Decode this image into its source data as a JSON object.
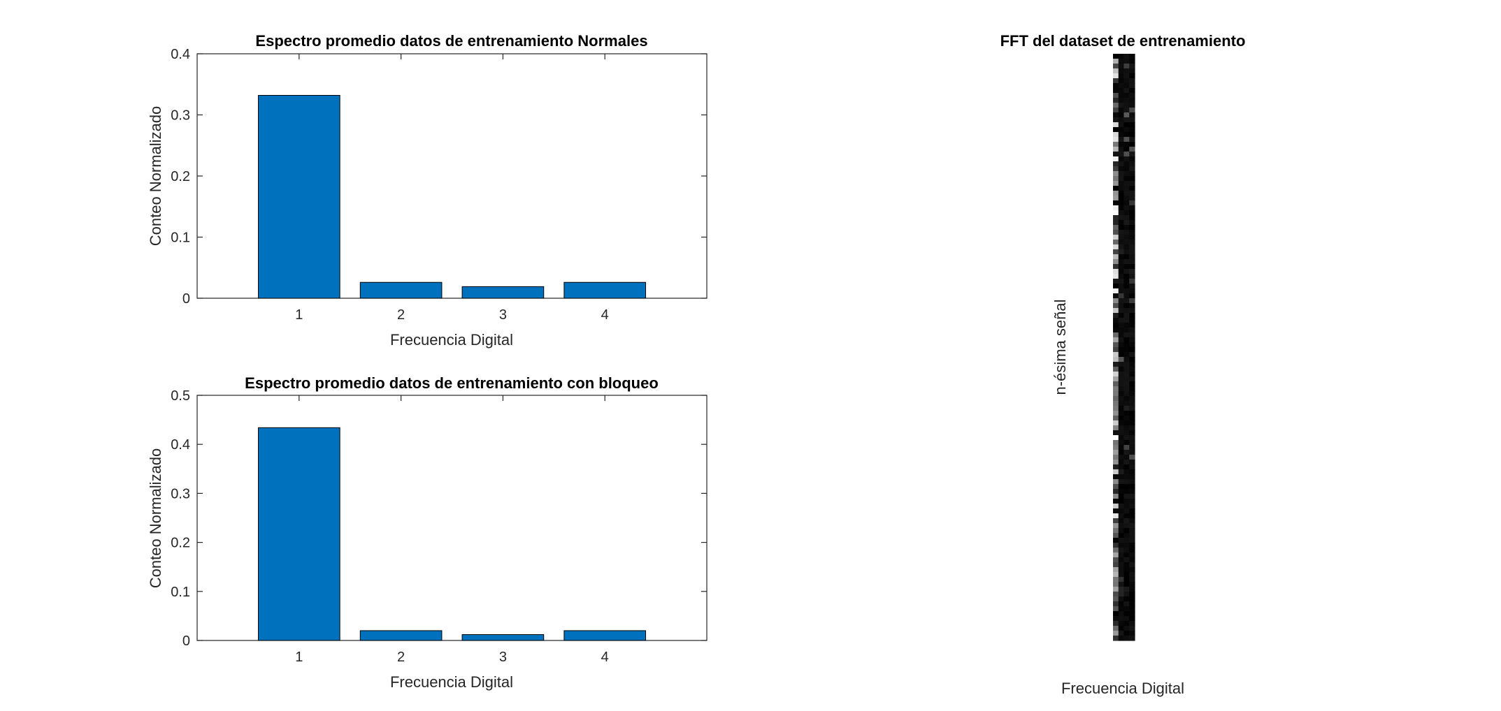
{
  "chart_data": [
    {
      "type": "bar",
      "title": "Espectro promedio datos de entrenamiento Normales",
      "xlabel": "Frecuencia Digital",
      "ylabel": "Conteo Normalizado",
      "categories": [
        "1",
        "2",
        "3",
        "4"
      ],
      "values": [
        0.332,
        0.026,
        0.019,
        0.026
      ],
      "xlim": [
        0,
        5
      ],
      "ylim": [
        0,
        0.4
      ],
      "yticks": [
        0,
        0.1,
        0.2,
        0.3,
        0.4
      ],
      "ytick_labels": [
        "0",
        "0.1",
        "0.2",
        "0.3",
        "0.4"
      ],
      "bar_color": "#0072BD",
      "grid": false
    },
    {
      "type": "bar",
      "title": "Espectro promedio datos de entrenamiento con bloqueo",
      "xlabel": "Frecuencia Digital",
      "ylabel": "Conteo Normalizado",
      "categories": [
        "1",
        "2",
        "3",
        "4"
      ],
      "values": [
        0.434,
        0.02,
        0.012,
        0.02
      ],
      "xlim": [
        0,
        5
      ],
      "ylim": [
        0,
        0.5
      ],
      "yticks": [
        0,
        0.1,
        0.2,
        0.3,
        0.4,
        0.5
      ],
      "ytick_labels": [
        "0",
        "0.1",
        "0.2",
        "0.3",
        "0.4",
        "0.5"
      ],
      "bar_color": "#0072BD",
      "grid": false
    },
    {
      "type": "heatmap",
      "title": "FFT del dataset de entrenamiento",
      "xlabel": "Frecuencia Digital",
      "ylabel": "n-ésima señal",
      "colormap": "gray",
      "columns": 4,
      "rows": 120,
      "axes_visible": false
    }
  ]
}
